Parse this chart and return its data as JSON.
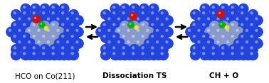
{
  "labels": [
    "HCO on Co(211)",
    "Dissociation TS",
    "CH + O"
  ],
  "label_fontsize": 7.5,
  "label_bold": [
    false,
    true,
    true
  ],
  "bg_color": "#ffffff",
  "cobalt_color": "#2244dd",
  "cobalt_edge": "#1133bb",
  "cobalt_light_color": "#8899cc",
  "cobalt_light_edge": "#6677aa",
  "oxygen_color": "#cc1111",
  "oxygen_edge": "#881111",
  "carbon_color": "#11aa11",
  "carbon_edge": "#008800",
  "hydrogen_color": "#dddd44",
  "hydrogen_edge": "#aaaa00",
  "figure_width": 3.78,
  "figure_height": 1.17,
  "dpi": 100
}
